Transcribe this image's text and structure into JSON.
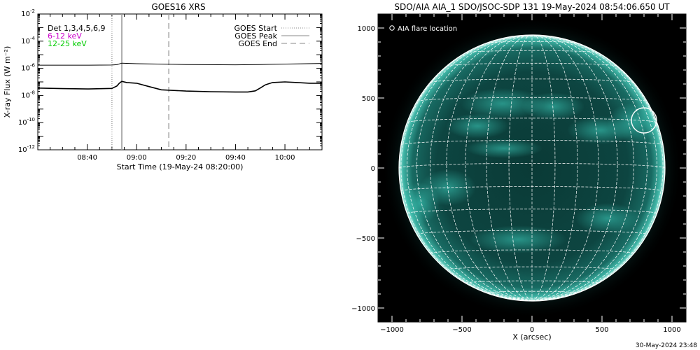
{
  "footer": {
    "timestamp": "30-May-2024 23:48"
  },
  "chart_data": [
    {
      "type": "line",
      "title": "GOES16 XRS",
      "xlabel": "Start Time (19-May-24 08:20:00)",
      "ylabel": "X-ray Flux (W m⁻²)",
      "y_scale": "log",
      "ylim": [
        1e-12,
        0.01
      ],
      "xlim": [
        "08:20",
        "10:15"
      ],
      "x_ticks": [
        "08:40",
        "09:00",
        "09:20",
        "09:40",
        "10:00"
      ],
      "y_ticks": [
        {
          "value": 1e-12,
          "base": "10",
          "exp": "-12"
        },
        {
          "value": 1e-10,
          "base": "10",
          "exp": "-10"
        },
        {
          "value": 1e-08,
          "base": "10",
          "exp": "-8"
        },
        {
          "value": 1e-06,
          "base": "10",
          "exp": "-6"
        },
        {
          "value": 0.0001,
          "base": "10",
          "exp": "-4"
        },
        {
          "value": 0.01,
          "base": "10",
          "exp": "-2"
        }
      ],
      "channel_legend": [
        {
          "label": "Det 1,3,4,5,6,9",
          "color": "#000000"
        },
        {
          "label": "6-12 keV",
          "color": "#cc00cc"
        },
        {
          "label": "12-25 keV",
          "color": "#00cc00"
        }
      ],
      "event_legend": [
        {
          "label": "GOES Start",
          "style": "dotted",
          "time": "08:50"
        },
        {
          "label": "GOES Peak",
          "style": "solid",
          "time": "08:54"
        },
        {
          "label": "GOES End",
          "style": "dashed",
          "time": "09:13"
        }
      ],
      "series": [
        {
          "x": [
            "08:20",
            "08:30",
            "08:40",
            "08:50",
            "08:52",
            "08:54",
            "09:00",
            "09:20",
            "09:40",
            "09:50",
            "10:15"
          ],
          "values": [
            1.7e-06,
            1.7e-06,
            1.7e-06,
            1.75e-06,
            1.85e-06,
            2.4e-06,
            2.2e-06,
            1.9e-06,
            1.8e-06,
            1.9e-06,
            2.3e-06
          ]
        },
        {
          "x": [
            "08:20",
            "08:30",
            "08:40",
            "08:50",
            "08:52",
            "08:53",
            "08:54",
            "08:56",
            "09:00",
            "09:05",
            "09:10",
            "09:20",
            "09:30",
            "09:40",
            "09:45",
            "09:48",
            "09:50",
            "09:52",
            "09:55",
            "10:00",
            "10:05",
            "10:10",
            "10:15"
          ],
          "values": [
            3.5e-08,
            3.2e-08,
            3e-08,
            3.3e-08,
            5e-08,
            8e-08,
            1.1e-07,
            9e-08,
            8e-08,
            4.5e-08,
            2.6e-08,
            2.1e-08,
            1.9e-08,
            1.8e-08,
            1.8e-08,
            2.2e-08,
            3.5e-08,
            6e-08,
            9e-08,
            1e-07,
            9e-08,
            8e-08,
            8e-08
          ]
        }
      ]
    },
    {
      "type": "image",
      "title": "SDO/AIA AIA_1 SDO/JSOC-SDP 131 19-May-2024 08:54:06.650 UT",
      "xlabel": "X (arcsec)",
      "xlim": [
        -1100,
        1100
      ],
      "ylim": [
        -1100,
        1100
      ],
      "x_ticks": [
        -1000,
        -500,
        0,
        500,
        1000
      ],
      "y_ticks": [
        -1000,
        -500,
        0,
        500,
        1000
      ],
      "x_tick_labels": [
        "−1000",
        "−500",
        "0",
        "500",
        "1000"
      ],
      "y_tick_labels": [
        "−1000",
        "−500",
        "0",
        "500",
        "1000"
      ],
      "solar_radius": 950,
      "legend": "AIA flare location",
      "flare_location": {
        "x": 800,
        "y": 340,
        "radius": 90
      },
      "colors": {
        "background": "#000000",
        "disk": "#0a3a36",
        "highlight": "#3fd6c4",
        "grid": "#ffffff"
      }
    }
  ]
}
